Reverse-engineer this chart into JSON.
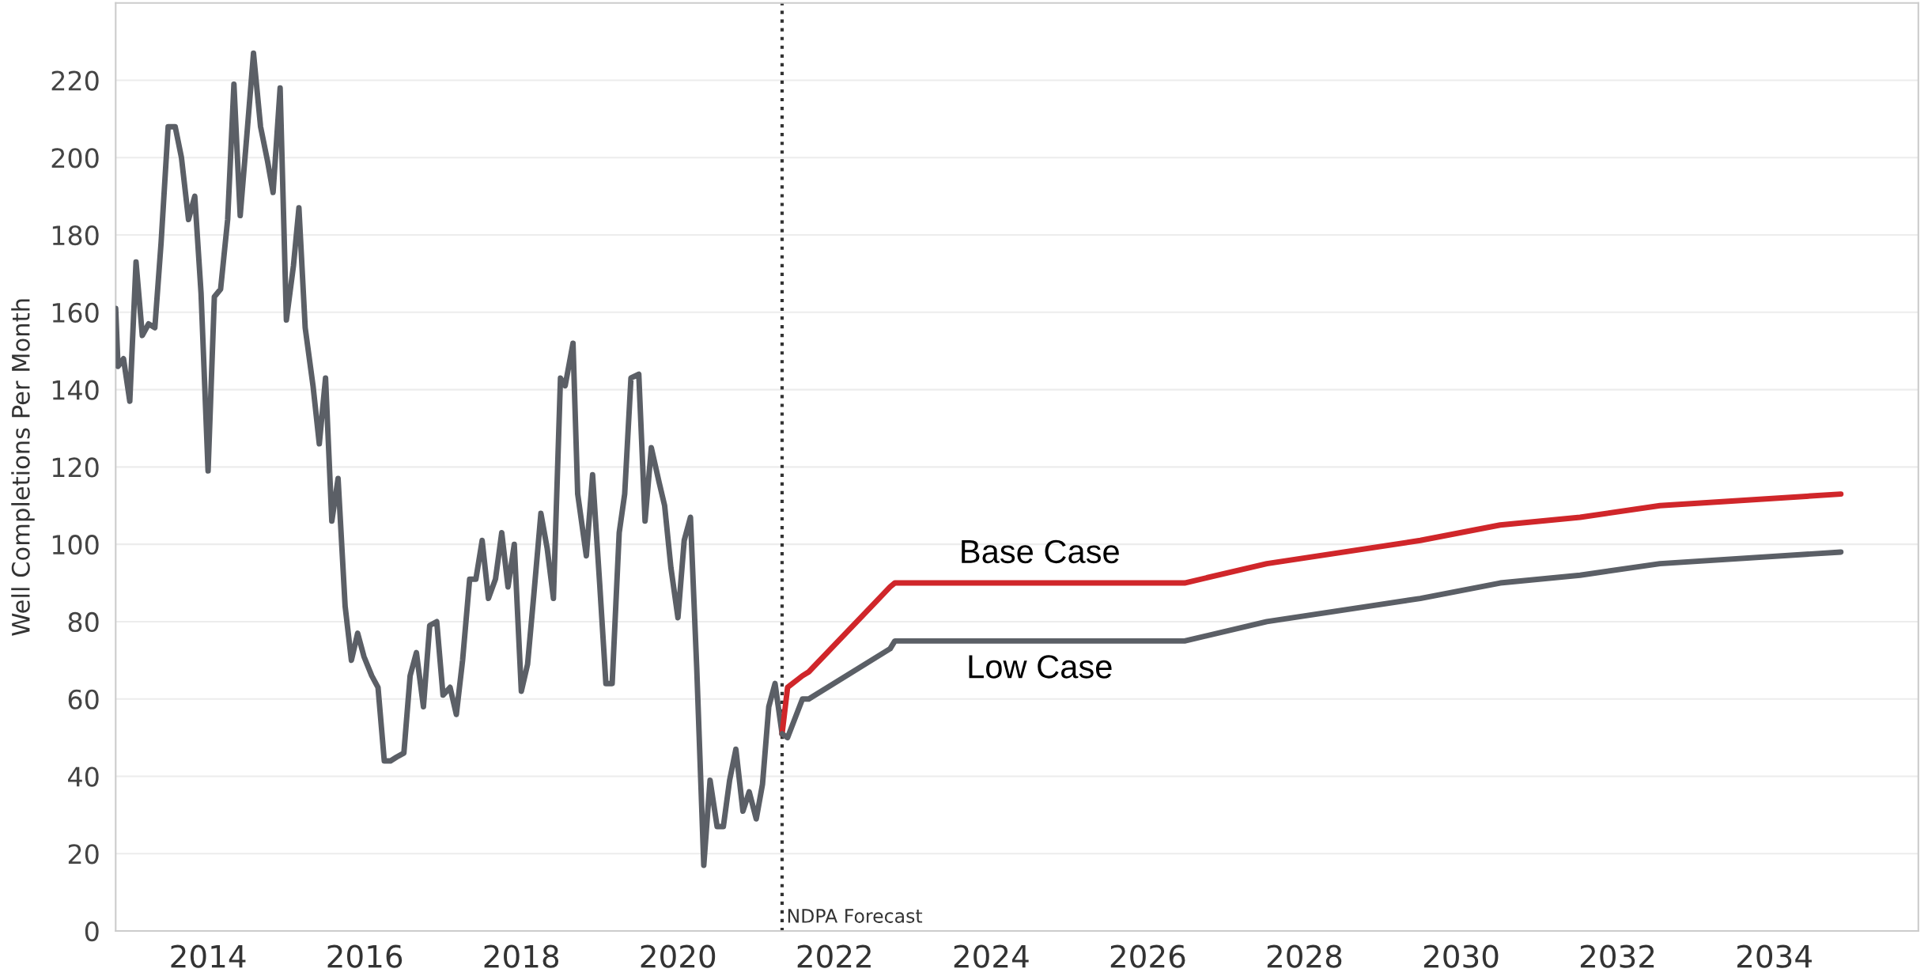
{
  "chart_data": {
    "type": "line",
    "ylabel": "Well Completions Per Month",
    "xlim": [
      2012.82,
      2035.84
    ],
    "xticks": [
      2014,
      2016,
      2018,
      2020,
      2022,
      2024,
      2026,
      2028,
      2030,
      2032,
      2034
    ],
    "ylim": [
      0,
      240
    ],
    "yticks": [
      0,
      20,
      40,
      60,
      80,
      100,
      120,
      140,
      160,
      180,
      200,
      220
    ],
    "grid": "y",
    "legend": false,
    "marker": "none",
    "line_style": "solid",
    "ref_lines": [
      {
        "axis": "x",
        "value": 2021.33,
        "label": "NDPA Forecast",
        "color": "#333333",
        "line_style": "dotted"
      }
    ],
    "series": [
      {
        "color": "#5b5f66",
        "x": [
          2012.82,
          2012.85,
          2012.92,
          2013.0,
          2013.08,
          2013.16,
          2013.24,
          2013.32,
          2013.4,
          2013.49,
          2013.58,
          2013.66,
          2013.75,
          2013.83,
          2013.91,
          2014.0,
          2014.08,
          2014.16,
          2014.25,
          2014.33,
          2014.41,
          2014.5,
          2014.58,
          2014.67,
          2014.76,
          2014.83,
          2014.92,
          2015.0,
          2015.09,
          2015.16,
          2015.24,
          2015.34,
          2015.42,
          2015.5,
          2015.58,
          2015.66,
          2015.75,
          2015.83,
          2015.91,
          2015.99,
          2016.09,
          2016.17,
          2016.25,
          2016.33,
          2016.41,
          2016.5,
          2016.58,
          2016.66,
          2016.75,
          2016.83,
          2016.92,
          2017.0,
          2017.09,
          2017.17,
          2017.25,
          2017.34,
          2017.42,
          2017.5,
          2017.58,
          2017.67,
          2017.75,
          2017.83,
          2017.91,
          2018.0,
          2018.08,
          2018.16,
          2018.25,
          2018.33,
          2018.41,
          2018.5,
          2018.56,
          2018.66,
          2018.72,
          2018.83,
          2018.91,
          2019.0,
          2019.08,
          2019.16,
          2019.25,
          2019.32,
          2019.4,
          2019.5,
          2019.58,
          2019.66,
          2019.76,
          2019.83,
          2019.91,
          2020.0,
          2020.08,
          2020.16,
          2020.24,
          2020.33,
          2020.41,
          2020.5,
          2020.58,
          2020.66,
          2020.74,
          2020.83,
          2020.91,
          2021.0,
          2021.08,
          2021.16,
          2021.24,
          2021.33
        ],
        "values": [
          161,
          146,
          148,
          137,
          173,
          154,
          157,
          156,
          178,
          208,
          208,
          200,
          184,
          190,
          165,
          119,
          164,
          166,
          184,
          219,
          185,
          207,
          227,
          208,
          199,
          191,
          218,
          158,
          172,
          187,
          156,
          141,
          126,
          143,
          106,
          117,
          84,
          70,
          77,
          71,
          66,
          63,
          44,
          44,
          45,
          46,
          66,
          72,
          58,
          79,
          80,
          61,
          63,
          56,
          70,
          91,
          91,
          101,
          86,
          91,
          103,
          89,
          100,
          62,
          69,
          87,
          108,
          99,
          86,
          143,
          141,
          152,
          113,
          97,
          118,
          90,
          64,
          64,
          103,
          113,
          143,
          144,
          106,
          125,
          116,
          110,
          94,
          81,
          101,
          107,
          68,
          17,
          39,
          27,
          27,
          39,
          47,
          31,
          36,
          29,
          38,
          58,
          64,
          51
        ]
      },
      {
        "name": "Base Case",
        "color": "#d0262a",
        "x": [
          2021.33,
          2021.4,
          2021.59,
          2021.67,
          2022.71,
          2022.77,
          2026.47,
          2027.52,
          2029.48,
          2030.5,
          2031.52,
          2032.54,
          2034.85
        ],
        "values": [
          51,
          63,
          66,
          67,
          89,
          90,
          90,
          95,
          101,
          105,
          107,
          110,
          113
        ]
      },
      {
        "name": "Low Case",
        "color": "#5b5f66",
        "x": [
          2021.33,
          2021.4,
          2021.59,
          2021.67,
          2022.71,
          2022.77,
          2026.47,
          2027.52,
          2029.48,
          2030.5,
          2031.52,
          2032.54,
          2034.85
        ],
        "values": [
          51,
          50,
          60,
          60,
          73,
          75,
          75,
          80,
          86,
          90,
          92,
          95,
          98
        ]
      }
    ]
  }
}
